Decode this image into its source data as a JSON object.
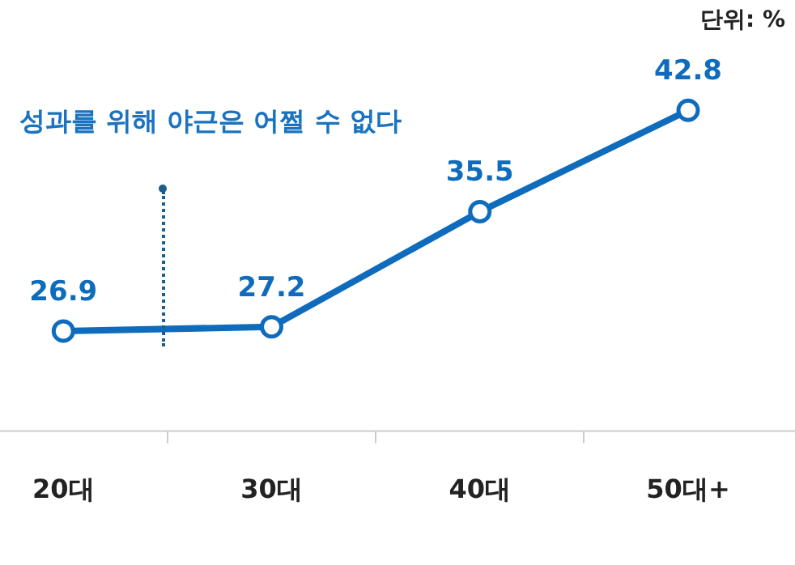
{
  "chart_data": {
    "type": "line",
    "categories": [
      "20대",
      "30대",
      "40대",
      "50대+"
    ],
    "series": [
      {
        "color": "#0f6cbd",
        "values": [
          26.9,
          27.2,
          35.5,
          42.8
        ]
      }
    ],
    "data_labels": true,
    "marker": "circle",
    "line_style": "solid",
    "grid": false,
    "legend": false,
    "tick_labels": "x",
    "annotations": [
      "단위: %",
      "성과를 위해 야근은 어쩔 수 없다"
    ]
  }
}
